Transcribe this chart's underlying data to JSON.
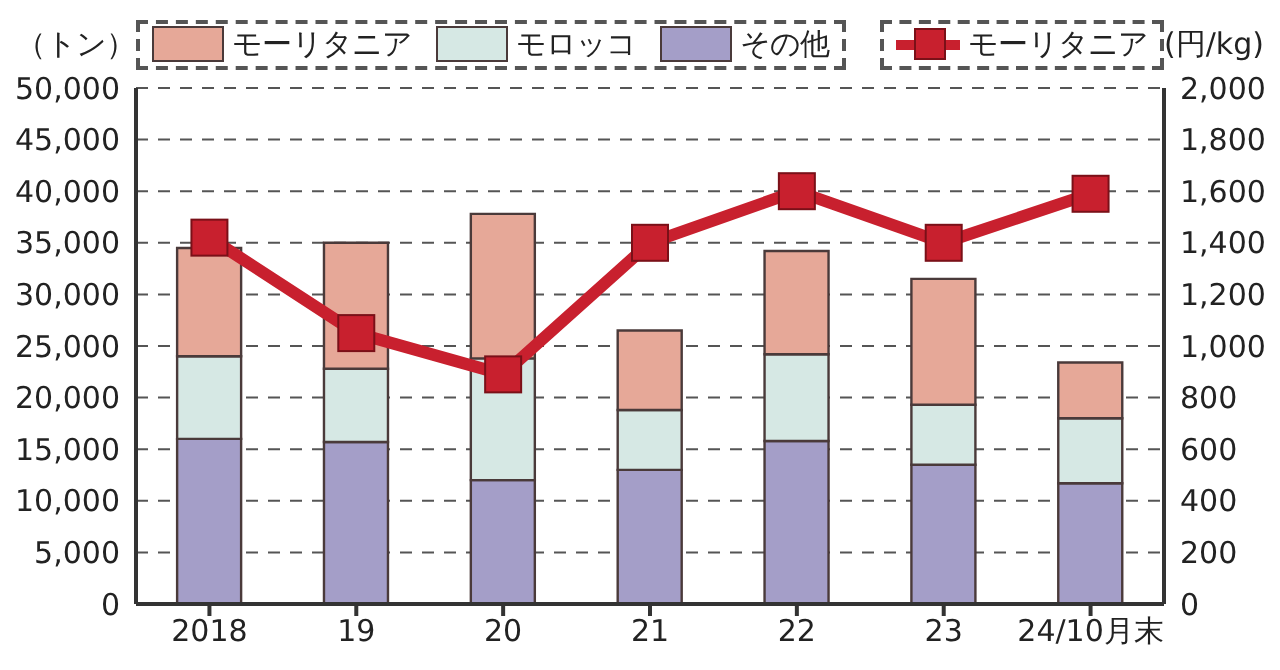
{
  "chart_data": {
    "type": "bar",
    "stacked": true,
    "ylabel": "（トン）",
    "y2label": "(円/kg)",
    "categories": [
      "2018",
      "19",
      "20",
      "21",
      "22",
      "23",
      "24/10月末"
    ],
    "series": [
      {
        "name": "その他",
        "color": "#a49ec8",
        "values": [
          16000,
          15700,
          12000,
          13000,
          15800,
          13500,
          11700
        ]
      },
      {
        "name": "モロッコ",
        "color": "#d6e8e4",
        "values": [
          8000,
          7100,
          11800,
          5800,
          8400,
          5800,
          6300
        ]
      },
      {
        "name": "モーリタニア",
        "color": "#e6a898",
        "values": [
          10500,
          12200,
          14000,
          7700,
          10000,
          12200,
          5400
        ]
      },
      {
        "name": "モーリタニア",
        "type": "line",
        "axis": "y2",
        "color": "#c8202e",
        "marker": "square",
        "values": [
          1420,
          1050,
          890,
          1400,
          1600,
          1400,
          1590
        ]
      }
    ],
    "ylim": [
      0,
      50000
    ],
    "yticks": [
      0,
      {
        "value": 5000,
        "label": "5,000"
      },
      {
        "value": 10000,
        "label": "10,000"
      },
      {
        "value": 15000,
        "label": "15,000"
      },
      {
        "value": 20000,
        "label": "20,000"
      },
      {
        "value": 25000,
        "label": "25,000"
      },
      {
        "value": 30000,
        "label": "30,000"
      },
      {
        "value": 35000,
        "label": "35,000"
      },
      {
        "value": 40000,
        "label": "40,000"
      },
      {
        "value": 45000,
        "label": "45,000"
      },
      {
        "value": 50000,
        "label": "50,000"
      }
    ],
    "y2lim": [
      0,
      2000
    ],
    "y2ticks": [
      0,
      200,
      400,
      600,
      800,
      {
        "value": 1000,
        "label": "1,000"
      },
      {
        "value": 1200,
        "label": "1,200"
      },
      {
        "value": 1400,
        "label": "1,400"
      },
      {
        "value": 1600,
        "label": "1,600"
      },
      {
        "value": 1800,
        "label": "1,800"
      },
      {
        "value": 2000,
        "label": "2,000"
      }
    ],
    "grid": "y",
    "legend": "top"
  }
}
